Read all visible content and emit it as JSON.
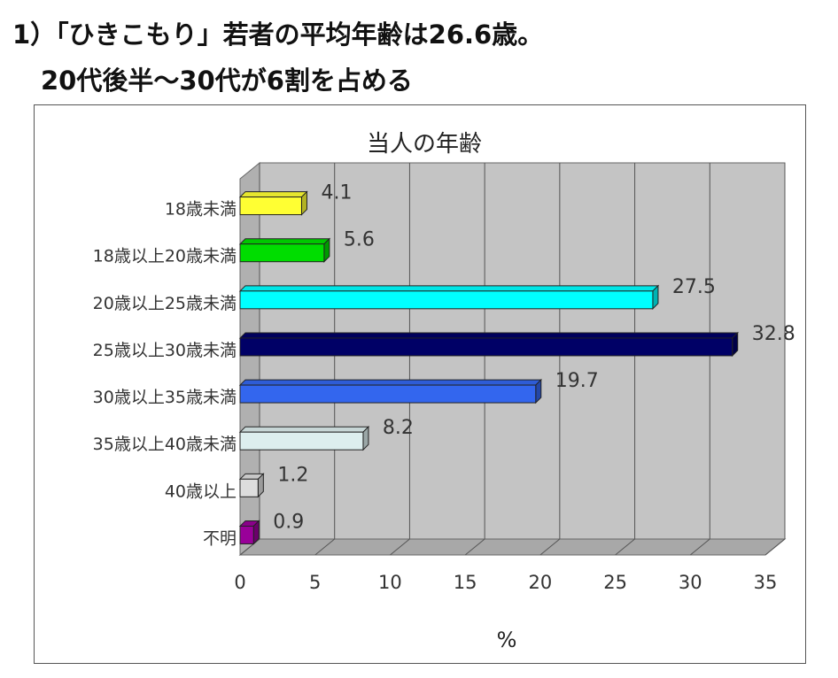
{
  "heading": {
    "line1": "1）「ひきこもり」若者の平均年齢は26.6歳。",
    "line2": "20代後半～30代が6割を占める"
  },
  "chart_data": {
    "type": "bar",
    "orientation": "horizontal",
    "title": "当人の年齢",
    "xlabel": "%",
    "ylabel": "",
    "xlim": [
      0,
      35
    ],
    "ticks": [
      0,
      5,
      10,
      15,
      20,
      25,
      30,
      35
    ],
    "grid": true,
    "legend": "none",
    "categories": [
      "18歳未満",
      "18歳以上20歳未満",
      "20歳以上25歳未満",
      "25歳以上30歳未満",
      "30歳以上35歳未満",
      "35歳以上40歳未満",
      "40歳以上",
      "不明"
    ],
    "values": [
      4.1,
      5.6,
      27.5,
      32.8,
      19.7,
      8.2,
      1.2,
      0.9
    ],
    "value_labels": [
      "4.1",
      "5.6",
      "27.5",
      "32.8",
      "19.7",
      "8.2",
      "1.2",
      "0.9"
    ],
    "colors": [
      "#ffff33",
      "#00dd00",
      "#00ffff",
      "#000066",
      "#3366ee",
      "#ddeeee",
      "#dddddd",
      "#990099"
    ]
  }
}
